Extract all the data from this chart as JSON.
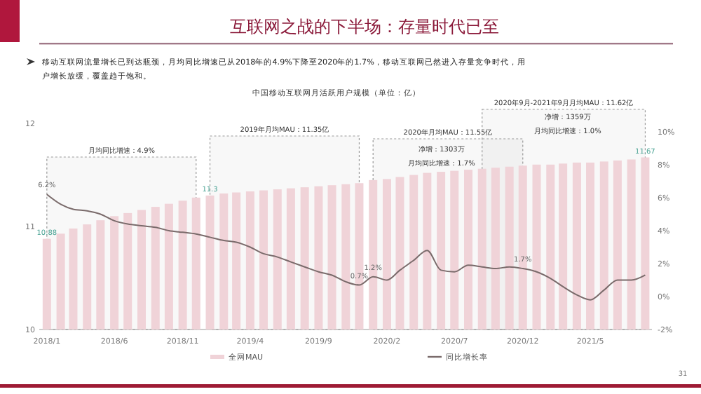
{
  "chart_data": {
    "type": "bar",
    "title": "互联网之战的下半场：存量时代已至",
    "subtitle": "移动互联网流量增长已到达瓶颈，月均同比增速已从2018年的4.9%下降至2020年的1.7%，移动互联网已然进入存量竞争时代，用户增长放缓，覆盖趋于饱和。",
    "annotations": [
      "中国移动互联网月活跃用户规模（单位：亿）",
      "净增：1303万",
      "月均同比增速：1.7%",
      "净增：1359万",
      "月均同比增速：1.0%",
      "31"
    ],
    "x": [
      "2018-01",
      "2018-02",
      "2018-03",
      "2018-04",
      "2018-05",
      "2018-06",
      "2018-07",
      "2018-08",
      "2018-09",
      "2018-10",
      "2018-11",
      "2018-12",
      "2019-01",
      "2019-02",
      "2019-03",
      "2019-04",
      "2019-05",
      "2019-06",
      "2019-07",
      "2019-08",
      "2019-09",
      "2019-10",
      "2019-11",
      "2019-12",
      "2020-01",
      "2020-02",
      "2020-03",
      "2020-04",
      "2020-05",
      "2020-06",
      "2020-07",
      "2020-08",
      "2020-09",
      "2020-10",
      "2020-11",
      "2020-12",
      "2021-01",
      "2021-02",
      "2021-03",
      "2021-04",
      "2021-05",
      "2021-06",
      "2021-07",
      "2021-08",
      "2021-09"
    ],
    "xlim": [
      "2017-12-15",
      "2021-09-16"
    ],
    "xticks": [
      {
        "value": "2018-01",
        "label": "2018/1"
      },
      {
        "value": "2018-06",
        "label": "2018/6"
      },
      {
        "value": "2018-11",
        "label": "2018/11"
      },
      {
        "value": "2019-04",
        "label": "2019/4"
      },
      {
        "value": "2019-09",
        "label": "2019/9"
      },
      {
        "value": "2020-02",
        "label": "2020/2"
      },
      {
        "value": "2020-07",
        "label": "2020/7"
      },
      {
        "value": "2020-12",
        "label": "2020/12"
      },
      {
        "value": "2021-05",
        "label": "2021/5"
      }
    ],
    "series": [
      {
        "name": "全网MAU",
        "type": "bar",
        "color": "#f0d3d8",
        "values": [
          10.88,
          10.93,
          10.98,
          11.02,
          11.06,
          11.1,
          11.13,
          11.16,
          11.19,
          11.22,
          11.25,
          11.28,
          11.3,
          11.32,
          11.33,
          11.34,
          11.35,
          11.36,
          11.37,
          11.38,
          11.39,
          11.4,
          11.41,
          11.42,
          11.45,
          11.46,
          11.48,
          11.5,
          11.52,
          11.53,
          11.54,
          11.55,
          11.56,
          11.57,
          11.58,
          11.59,
          11.6,
          11.6,
          11.61,
          11.62,
          11.62,
          11.63,
          11.64,
          11.65,
          11.67
        ],
        "value_labels": [
          "10.88",
          null,
          null,
          null,
          null,
          null,
          null,
          null,
          null,
          null,
          null,
          null,
          "11.3",
          null,
          null,
          null,
          null,
          null,
          null,
          null,
          null,
          null,
          null,
          null,
          null,
          null,
          null,
          null,
          null,
          null,
          null,
          null,
          null,
          null,
          null,
          null,
          null,
          null,
          null,
          null,
          null,
          null,
          null,
          null,
          "11.67"
        ]
      },
      {
        "name": "同比增长率",
        "type": "line",
        "axis": "y2",
        "color": "#7a6b6b",
        "values": [
          6.2,
          5.6,
          5.3,
          5.2,
          5.0,
          4.6,
          4.4,
          4.3,
          4.2,
          4.0,
          3.9,
          3.8,
          3.6,
          3.4,
          3.3,
          3.0,
          2.6,
          2.4,
          2.1,
          1.8,
          1.5,
          1.3,
          0.9,
          0.7,
          1.2,
          1.0,
          1.6,
          2.2,
          2.8,
          1.6,
          1.5,
          1.9,
          1.8,
          1.7,
          1.8,
          1.7,
          1.5,
          1.1,
          0.6,
          0.1,
          -0.2,
          0.4,
          1.0,
          1.0,
          1.3
        ],
        "value_labels": [
          "6.2%",
          null,
          null,
          null,
          null,
          null,
          null,
          null,
          null,
          null,
          null,
          null,
          null,
          null,
          null,
          null,
          null,
          null,
          null,
          null,
          null,
          null,
          null,
          "0.7%",
          "1.2%",
          null,
          null,
          null,
          null,
          null,
          null,
          null,
          null,
          null,
          null,
          "1.7%",
          null,
          null,
          null,
          null,
          null,
          null,
          null,
          null,
          null
        ]
      }
    ],
    "bands": [
      {
        "axis": "x",
        "from": "2018-01",
        "to": "2018-12",
        "label": "月均同比增速：4.9%",
        "color": "#999999"
      },
      {
        "axis": "x",
        "from": "2019-01",
        "to": "2019-12",
        "label": "2019年月均MAU：11.35亿",
        "color": "#999999"
      },
      {
        "axis": "x",
        "from": "2020-01",
        "to": "2020-12",
        "label": "2020年月均MAU：11.55亿",
        "color": "#999999"
      },
      {
        "axis": "x",
        "from": "2020-09",
        "to": "2021-09",
        "label": "2020年9月-2021年9月月均MAU：11.62亿",
        "color": "#999999"
      }
    ],
    "ylim": [
      10,
      12
    ],
    "yticks": [
      10,
      11,
      12
    ],
    "y2lim": [
      -2,
      10
    ],
    "y2ticks": [
      {
        "value": -2,
        "label": "-2%"
      },
      {
        "value": 0,
        "label": "0%"
      },
      {
        "value": 2,
        "label": "2%"
      },
      {
        "value": 4,
        "label": "4%"
      },
      {
        "value": 6,
        "label": "6%"
      },
      {
        "value": 8,
        "label": "8%"
      },
      {
        "value": 10,
        "label": "10%"
      }
    ],
    "legend": "bottom",
    "grid": false,
    "marker": "none",
    "line_style": "solid"
  }
}
